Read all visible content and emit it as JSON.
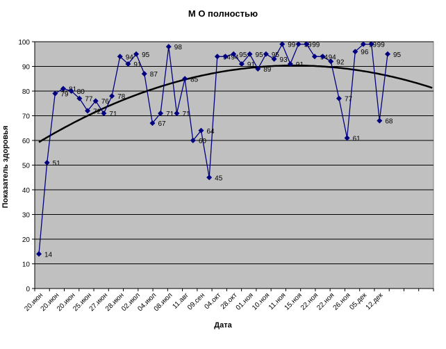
{
  "chart_data": {
    "type": "line",
    "title": "М О полностью",
    "xlabel": "Дата",
    "ylabel": "Показатель здоровья",
    "ylim": [
      0,
      100
    ],
    "y_ticks": [
      0,
      10,
      20,
      30,
      40,
      50,
      60,
      70,
      80,
      90,
      100
    ],
    "grid": "horizontal",
    "x_tick_labels": [
      "20.июн",
      "20.июн",
      "20.июн",
      "25.июн",
      "27.июн",
      "28.июн",
      "02.июл",
      "04.июл",
      "08.июл",
      "11.авг",
      "09.сен",
      "04.окт",
      "28.окт",
      "01.ноя",
      "10.ноя",
      "11.ноя",
      "15.ноя",
      "22.ноя",
      "22.ноя",
      "26.ноя",
      "05.дек",
      "12.дек"
    ],
    "series": [
      {
        "color": "#000080",
        "marker": "diamond",
        "values": [
          14,
          51,
          79,
          81,
          80,
          77,
          72,
          76,
          71,
          78,
          94,
          91,
          95,
          87,
          67,
          71,
          98,
          71,
          85,
          60,
          64,
          45,
          94,
          94,
          95,
          91,
          95,
          89,
          95,
          93,
          99,
          91,
          99,
          99,
          94,
          94,
          92,
          77,
          61,
          96,
          99,
          99,
          68,
          95
        ],
        "labels": [
          "14",
          "51",
          "79",
          "81",
          "80",
          "77",
          "72",
          "76",
          "71",
          "78",
          "94",
          "91",
          "95",
          "87",
          "67",
          "71",
          "98",
          "71",
          "85",
          "60",
          "64",
          "45",
          "94",
          "94",
          "95",
          "91",
          "95",
          "89",
          "95",
          "93",
          "99",
          "91",
          "99",
          "99",
          "94",
          "94",
          "92",
          "77",
          "61",
          "96",
          "99",
          "99",
          "68",
          "95"
        ]
      }
    ],
    "trendline": {
      "type": "polynomial",
      "color": "#000000",
      "description": "trend curve"
    },
    "plot_background": "#c0c0c0",
    "point_label_ids": [
      "label-14",
      "label-51",
      "label-79",
      "label-81",
      "label-80",
      "label-77",
      "label-72",
      "label-76",
      "label-71",
      "label-78",
      "label-94",
      "label-91",
      "label-95",
      "label-87",
      "label-67",
      "label-71b",
      "label-98",
      "label-71c",
      "label-85",
      "label-60",
      "label-64",
      "label-45",
      "label-94b",
      "label-94c",
      "label-95b",
      "label-91b",
      "label-95c",
      "label-89",
      "label-95d",
      "label-93",
      "label-99",
      "label-91c",
      "label-99b",
      "label-99c",
      "label-94d",
      "label-94e",
      "label-92",
      "label-77b",
      "label-61",
      "label-96",
      "label-99d",
      "label-99e",
      "label-68",
      "label-95e"
    ]
  }
}
